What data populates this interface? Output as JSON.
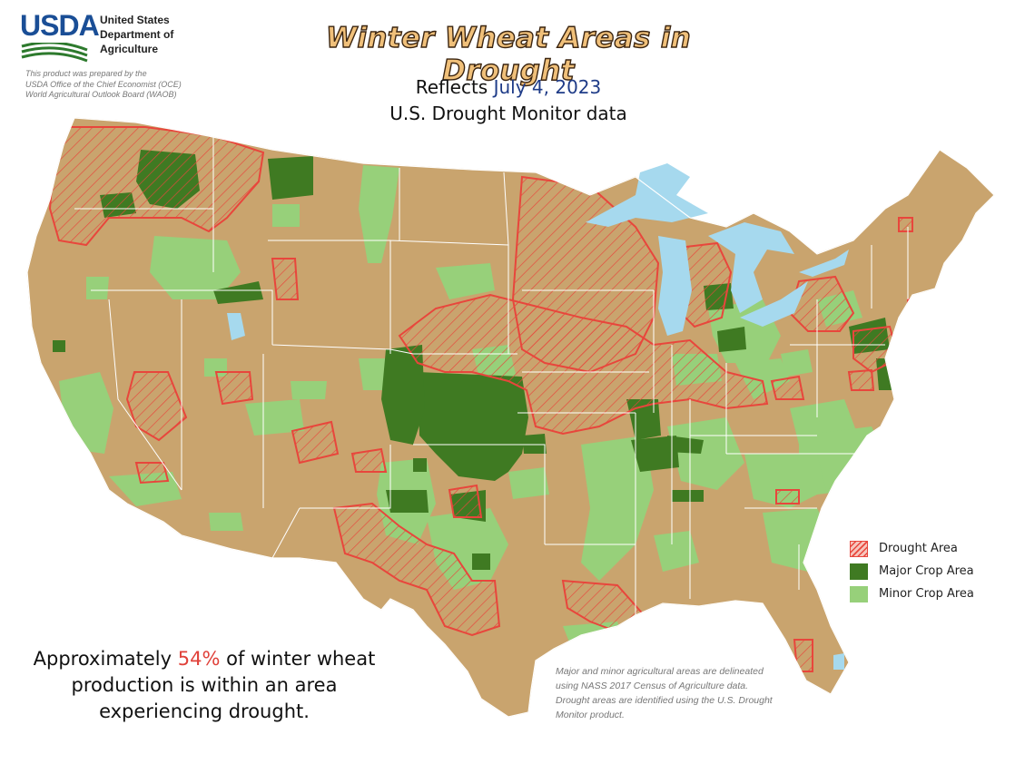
{
  "header": {
    "logo_text": "USDA",
    "department_lines": [
      "United States",
      "Department of",
      "Agriculture"
    ],
    "prepared_lines": [
      "This product was prepared by the",
      "USDA Office of the Chief Economist (OCE)",
      "World Agricultural Outlook Board (WAOB)"
    ],
    "title": "Winter Wheat Areas in Drought",
    "subtitle_prefix": "Reflects",
    "subtitle_date": "July 4, 2023",
    "subtitle_line2": "U.S. Drought Monitor data"
  },
  "legend": {
    "items": [
      {
        "label": "Drought Area",
        "swatch": "drought"
      },
      {
        "label": "Major Crop Area",
        "swatch": "major"
      },
      {
        "label": "Minor Crop Area",
        "swatch": "minor"
      }
    ]
  },
  "statement": {
    "prefix": "Approximately",
    "percent": "54%",
    "suffix": "of winter wheat production is within an area experiencing drought."
  },
  "footnote": "Major and minor agricultural areas are delineated using NASS 2017 Census of Agriculture data.  Drought areas are identified using the U.S. Drought Monitor product.",
  "colors": {
    "land": "#c9a46e",
    "water": "#a6d9ee",
    "major_crop": "#3f7a22",
    "minor_crop": "#97d07a",
    "drought_outline": "#e8463c",
    "title_fill": "#f0c07a",
    "date_text": "#1f3c88",
    "percent_text": "#e0413a"
  }
}
